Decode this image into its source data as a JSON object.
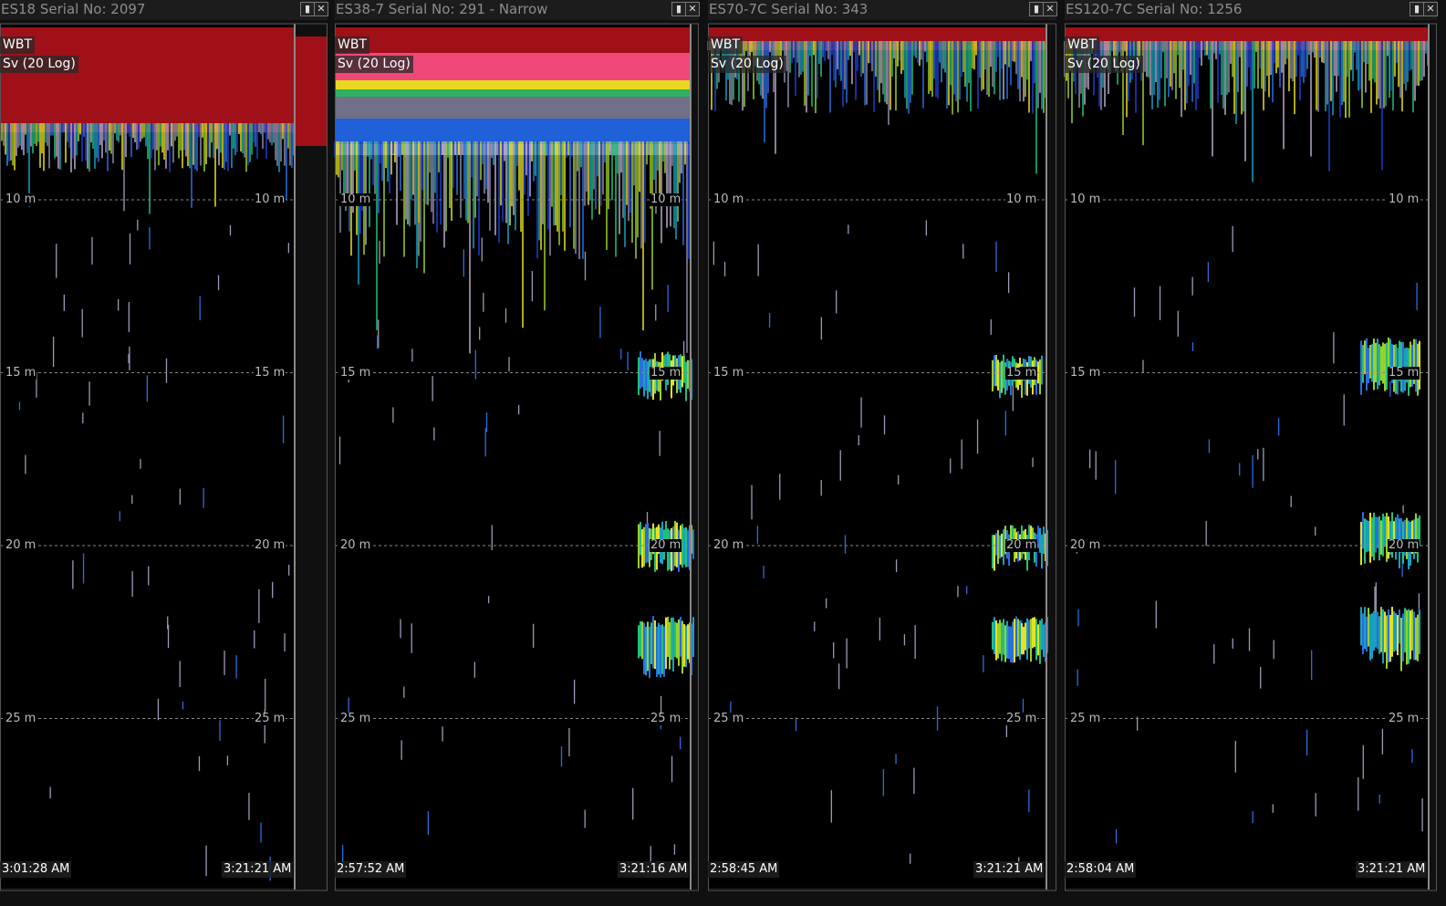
{
  "panels": [
    {
      "title": "ES18 Serial No: 2097",
      "channel": "WBT",
      "variable": "Sv (20 Log)",
      "depth_labels": [
        "10 m",
        "15 m",
        "20 m",
        "25 m"
      ],
      "start_time": "3:01:28 AM",
      "end_time": "3:21:21 AM"
    },
    {
      "title": "ES38-7 Serial No: 291 - Narrow",
      "channel": "WBT",
      "variable": "Sv (20 Log)",
      "depth_labels": [
        "10 m",
        "15 m",
        "20 m",
        "25 m"
      ],
      "start_time": "2:57:52 AM",
      "end_time": "3:21:16 AM"
    },
    {
      "title": "ES70-7C Serial No: 343",
      "channel": "WBT",
      "variable": "Sv (20 Log)",
      "depth_labels": [
        "10 m",
        "15 m",
        "20 m",
        "25 m"
      ],
      "start_time": "2:58:45 AM",
      "end_time": "3:21:21 AM"
    },
    {
      "title": "ES120-7C Serial No: 1256",
      "channel": "WBT",
      "variable": "Sv (20 Log)",
      "depth_labels": [
        "10 m",
        "15 m",
        "20 m",
        "25 m"
      ],
      "start_time": "2:58:04 AM",
      "end_time": "3:21:21 AM"
    }
  ]
}
